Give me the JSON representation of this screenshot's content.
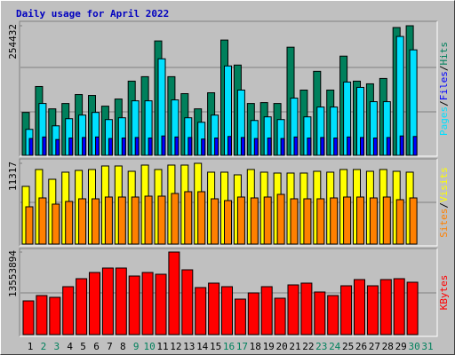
{
  "chart_data": {
    "type": "bar",
    "title": "Daily usage for April 2022",
    "categories": [
      "1",
      "2",
      "3",
      "4",
      "5",
      "6",
      "7",
      "8",
      "9",
      "10",
      "11",
      "12",
      "13",
      "14",
      "15",
      "16",
      "17",
      "18",
      "19",
      "20",
      "21",
      "22",
      "23",
      "24",
      "25",
      "26",
      "27",
      "28",
      "29",
      "30",
      "31"
    ],
    "category_colors": [
      "#000000",
      "#00805c",
      "#00805c",
      "#000000",
      "#000000",
      "#000000",
      "#000000",
      "#000000",
      "#00805c",
      "#00805c",
      "#000000",
      "#000000",
      "#000000",
      "#000000",
      "#000000",
      "#00805c",
      "#00805c",
      "#000000",
      "#000000",
      "#000000",
      "#000000",
      "#000000",
      "#00805c",
      "#00805c",
      "#000000",
      "#000000",
      "#000000",
      "#000000",
      "#000000",
      "#00805c",
      "#00805c"
    ],
    "legend_separator": "/",
    "panels": [
      {
        "ylim": [
          0,
          254432
        ],
        "yticks": [
          254432
        ],
        "series": [
          {
            "name": "Hits",
            "color": "#00805c",
            "label_color": "#00805c",
            "values": [
              84225,
              135112,
              91244,
              101773,
              119320,
              117565,
              96509,
              110546,
              145640,
              154414,
              224602,
              154414,
              121074,
              91244,
              122829,
              226356,
              177225,
              101773,
              103527,
              101773,
              212319,
              128093,
              164942,
              128093,
              194772,
              145640,
              140376,
              150904,
              250922,
              254432,
              null
            ]
          },
          {
            "name": "Files",
            "color": "#00e0ff",
            "label_color": "#0000ff",
            "values": [
              51000,
              101800,
              57900,
              71900,
              79000,
              84200,
              70200,
              73700,
              107000,
              107000,
              189500,
              108800,
              73700,
              64900,
              79000,
              175500,
              128100,
              68400,
              75500,
              70200,
              112300,
              75500,
              94800,
              94800,
              143900,
              133400,
              105300,
              105300,
              233400,
              207100,
              null
            ]
          },
          {
            "name": "Pages",
            "color": "#0000ff",
            "label_color": "#00e0ff",
            "values": [
              33000,
              36000,
              31000,
              34000,
              35000,
              36000,
              33000,
              34000,
              35000,
              34000,
              38000,
              36000,
              35000,
              32000,
              34000,
              37000,
              35000,
              33000,
              34000,
              33000,
              36000,
              34000,
              35000,
              34000,
              36000,
              35000,
              34000,
              35000,
              38000,
              37000,
              null
            ]
          }
        ]
      },
      {
        "ylim": [
          0,
          11317
        ],
        "yticks": [
          11317
        ],
        "series": [
          {
            "name": "Visits",
            "color": "#ffff00",
            "label_color": "#ffff00",
            "values": [
              8085,
              10447,
              9079,
              10074,
              10323,
              10447,
              10944,
              10944,
              10198,
              11068,
              10447,
              11068,
              11068,
              11317,
              10074,
              10074,
              9701,
              10447,
              10074,
              9950,
              9950,
              9950,
              10198,
              10074,
              10447,
              10447,
              10198,
              10447,
              10198,
              10074,
              null
            ]
          },
          {
            "name": "Sites",
            "color": "#ff8000",
            "label_color": "#ff8000",
            "values": [
              5224,
              6467,
              5596,
              5970,
              6343,
              6343,
              6592,
              6592,
              6592,
              6716,
              6716,
              7089,
              7338,
              7338,
              6343,
              6094,
              6592,
              6467,
              6592,
              6964,
              6343,
              6343,
              6343,
              6467,
              6592,
              6592,
              6467,
              6592,
              6219,
              6467,
              null
            ]
          }
        ]
      },
      {
        "ylim": [
          0,
          13553894
        ],
        "yticks": [
          13553894
        ],
        "series": [
          {
            "name": "KBytes",
            "color": "#ff0000",
            "label_color": "#ff0000",
            "values": [
              5538000,
              6412600,
              6121100,
              7870000,
              9181700,
              10201900,
              10930600,
              10930600,
              9618900,
              10201900,
              9910400,
              13553894,
              10639100,
              7724300,
              8453000,
              7870000,
              5829600,
              6849800,
              7870000,
              5975400,
              8161500,
              8453000,
              6995600,
              6412600,
              8015800,
              9035900,
              8015800,
              9035900,
              9181700,
              8598700,
              null
            ]
          }
        ]
      }
    ]
  }
}
